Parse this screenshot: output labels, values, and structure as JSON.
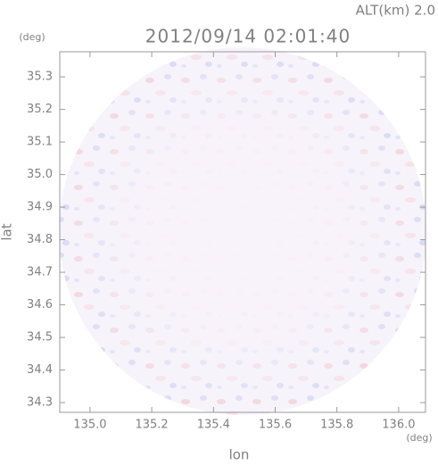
{
  "chart_data": {
    "type": "radar-image",
    "title": "2012/09/14 02:01:40",
    "subtitle": "ALT(km) 2.0",
    "x_label": "lon",
    "y_label": "lat",
    "x_unit": "(deg)",
    "y_unit": "(deg)",
    "xlim": [
      134.902,
      136.087
    ],
    "ylim": [
      34.27,
      35.377
    ],
    "xticks": [
      {
        "value": 135.0,
        "label": "135.0"
      },
      135.2,
      135.4,
      135.6,
      135.8,
      {
        "value": 136.0,
        "label": "136.0"
      }
    ],
    "yticks": [
      34.3,
      34.4,
      34.5,
      34.6,
      34.7,
      34.8,
      34.9,
      {
        "value": 35.0,
        "label": "35.0"
      },
      35.1,
      35.2,
      35.3
    ]
  }
}
